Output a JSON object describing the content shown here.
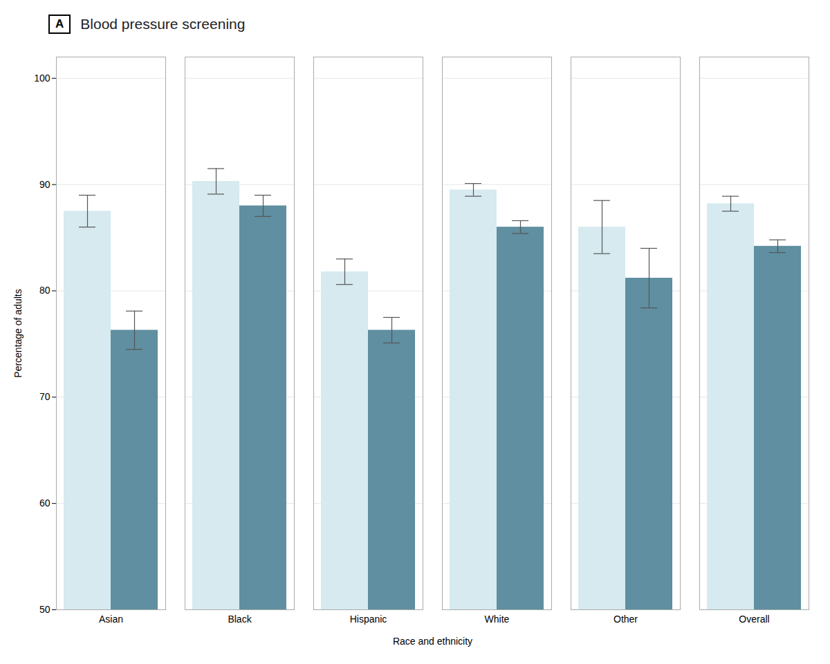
{
  "chart_data": {
    "type": "bar",
    "title": "Blood pressure screening",
    "panel_label": "A",
    "xlabel": "Race and ethnicity",
    "ylabel": "Percentage of adults",
    "categories": [
      "Asian",
      "Black",
      "Hispanic",
      "White",
      "Other",
      "Overall"
    ],
    "series": [
      {
        "color": "#d6eaf0",
        "values": [
          87.5,
          90.3,
          81.8,
          89.5,
          86.0,
          88.2
        ],
        "errors": [
          1.5,
          1.2,
          1.2,
          0.6,
          2.5,
          0.7
        ]
      },
      {
        "color": "#5f8fa0",
        "values": [
          76.3,
          88.0,
          76.3,
          86.0,
          81.2,
          84.2
        ],
        "errors": [
          1.8,
          1.0,
          1.2,
          0.6,
          2.8,
          0.6
        ]
      }
    ],
    "ylim": [
      50,
      102
    ],
    "yticks": [
      50,
      60,
      70,
      80,
      90,
      100
    ],
    "grid": true
  }
}
